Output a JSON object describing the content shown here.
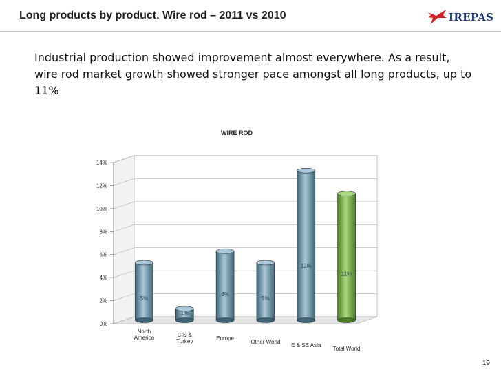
{
  "slide": {
    "title": "Long products by product. Wire rod – 2011 vs 2010",
    "subtitle": "Industrial production showed improvement almost everywhere. As a result, wire rod market growth showed stronger pace amongst all long products, up to 11%",
    "page_number": "19"
  },
  "logo": {
    "text": "IREPAS",
    "color_red": "#d22027",
    "color_blue": "#1f3a78"
  },
  "chart_data": {
    "type": "bar",
    "style": "3d-cylinder",
    "title": "WIRE ROD",
    "categories": [
      "North America",
      "CIS & Turkey",
      "Europe",
      "Other World",
      "E & SE Asia",
      "Total World"
    ],
    "category_lines": [
      [
        "North",
        "America"
      ],
      [
        "CIS &",
        "Turkey"
      ],
      [
        "Europe"
      ],
      [
        "Other World"
      ],
      [
        "E & SE Asia"
      ],
      [
        "Total World"
      ]
    ],
    "values": [
      5,
      1,
      6,
      5,
      13,
      11
    ],
    "data_labels": [
      "5%",
      "1%",
      "6%",
      "5%",
      "13%",
      "11%"
    ],
    "y_ticks": [
      "0%",
      "2%",
      "4%",
      "6%",
      "8%",
      "10%",
      "12%",
      "14%"
    ],
    "ylim": [
      0,
      14
    ],
    "y_unit": "%",
    "grid": true,
    "colors": {
      "bar": "#6f9bb0",
      "bar_light": "#a9c7d6",
      "bar_dark": "#3e6678",
      "total": "#78b64a",
      "total_light": "#a9d77f",
      "total_dark": "#4b7f27"
    }
  }
}
